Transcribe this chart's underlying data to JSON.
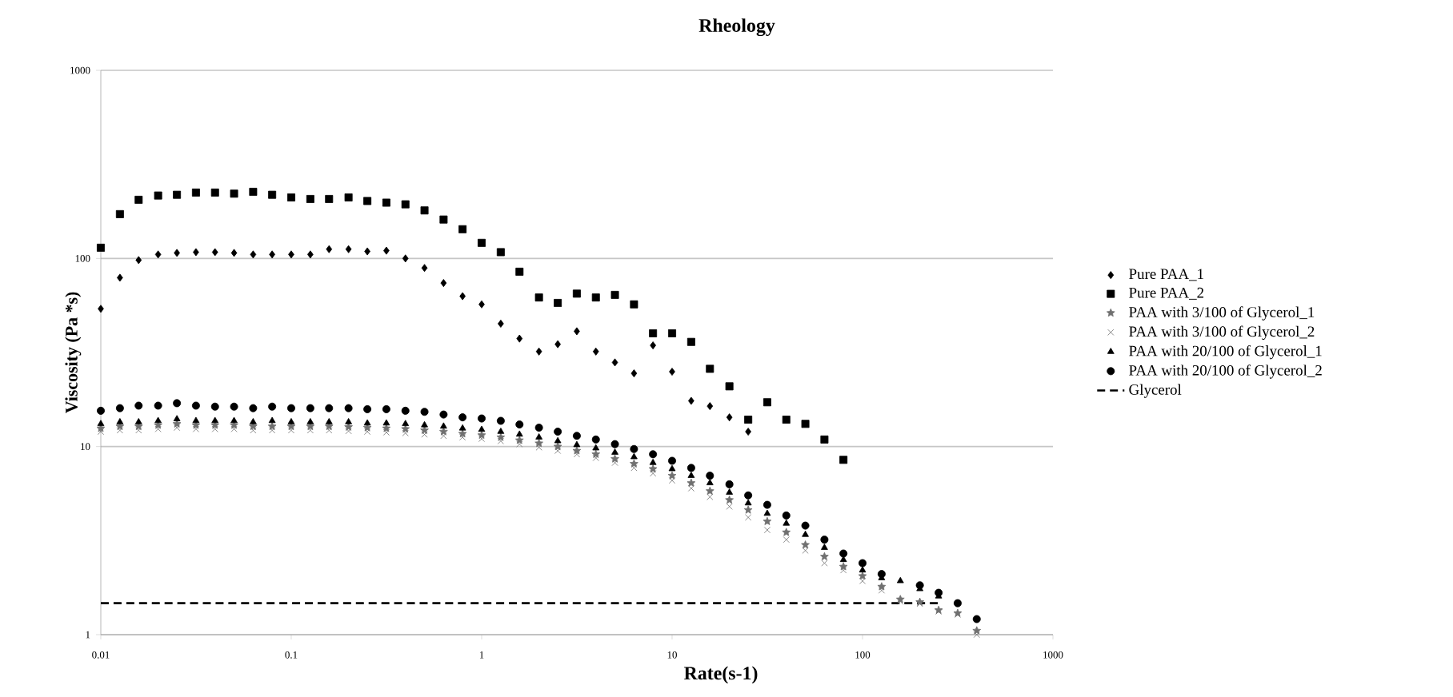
{
  "chart_data": {
    "type": "scatter",
    "title": "Rheology",
    "xlabel": "Rate(s-1)",
    "ylabel": "Viscosity (Pa *s)",
    "log": "xy",
    "grid": "y",
    "legend": "right",
    "xlim": [
      0.01,
      1000
    ],
    "ylim": [
      1,
      1000
    ],
    "xticks": [
      0.01,
      0.1,
      1,
      10,
      100,
      1000
    ],
    "yticks": [
      1,
      10,
      100,
      1000
    ],
    "series": [
      {
        "name": "Pure PAA_1",
        "color": "#000000",
        "marker": "diamond",
        "x": [
          0.01,
          0.0126,
          0.0158,
          0.02,
          0.0251,
          0.0316,
          0.0398,
          0.0501,
          0.0631,
          0.0794,
          0.1,
          0.126,
          0.158,
          0.2,
          0.251,
          0.316,
          0.398,
          0.501,
          0.631,
          0.794,
          1,
          1.26,
          1.58,
          2,
          2.51,
          3.16,
          3.98,
          5.01,
          6.31,
          7.94,
          10,
          12.6,
          15.8,
          20,
          25.1
        ],
        "values": [
          54,
          79,
          98,
          105,
          107,
          108,
          108,
          107,
          105,
          105,
          105,
          105,
          112,
          112,
          109,
          110,
          100,
          89,
          74,
          63,
          57,
          45,
          37.5,
          32,
          35,
          41,
          32,
          28,
          24.5,
          34.5,
          25,
          17.5,
          16.4,
          14.3,
          12
        ]
      },
      {
        "name": "Pure PAA_2",
        "color": "#000000",
        "marker": "square",
        "x": [
          0.01,
          0.0126,
          0.0158,
          0.02,
          0.0251,
          0.0316,
          0.0398,
          0.0501,
          0.0631,
          0.0794,
          0.1,
          0.126,
          0.158,
          0.2,
          0.251,
          0.316,
          0.398,
          0.501,
          0.631,
          0.794,
          1,
          1.26,
          1.58,
          2,
          2.51,
          3.16,
          3.98,
          5.01,
          6.31,
          7.94,
          10,
          12.6,
          15.8,
          20,
          25.1,
          31.6,
          39.8,
          50.1,
          63.1,
          79.4
        ],
        "values": [
          114,
          172,
          205,
          216,
          218,
          224,
          224,
          221,
          226,
          218,
          211,
          207,
          207,
          211,
          202,
          198,
          194,
          180,
          161,
          143,
          121,
          108,
          85,
          62,
          58,
          65,
          62,
          64,
          57,
          40,
          40,
          36,
          25.9,
          20.9,
          13.9,
          17.2,
          13.9,
          13.2,
          10.9,
          8.5
        ]
      },
      {
        "name": "PAA with 3/100 of Glycerol_1",
        "color": "#707070",
        "marker": "star",
        "x": [
          0.01,
          0.0126,
          0.0158,
          0.02,
          0.0251,
          0.0316,
          0.0398,
          0.0501,
          0.0631,
          0.0794,
          0.1,
          0.126,
          0.158,
          0.2,
          0.251,
          0.316,
          0.398,
          0.501,
          0.631,
          0.794,
          1,
          1.26,
          1.58,
          2,
          2.51,
          3.16,
          3.98,
          5.01,
          6.31,
          7.94,
          10,
          12.6,
          15.8,
          20,
          25.1,
          31.6,
          39.8,
          50.1,
          63.1,
          79.4,
          100,
          126,
          158,
          200,
          251,
          316,
          398
        ],
        "values": [
          12.5,
          12.8,
          12.8,
          13,
          13.2,
          13,
          13,
          13,
          12.8,
          12.8,
          12.8,
          12.8,
          12.8,
          12.7,
          12.6,
          12.5,
          12.4,
          12.2,
          12,
          11.7,
          11.5,
          11.2,
          10.8,
          10.4,
          10,
          9.5,
          9.1,
          8.6,
          8.1,
          7.6,
          7,
          6.4,
          5.8,
          5.2,
          4.6,
          4,
          3.5,
          3,
          2.6,
          2.3,
          2.05,
          1.8,
          1.54,
          1.49,
          1.35,
          1.3,
          1.05
        ]
      },
      {
        "name": "PAA with 3/100 of Glycerol_2",
        "color": "#707070",
        "marker": "cross",
        "x": [
          0.01,
          0.0126,
          0.0158,
          0.02,
          0.0251,
          0.0316,
          0.0398,
          0.0501,
          0.0631,
          0.0794,
          0.1,
          0.126,
          0.158,
          0.2,
          0.251,
          0.316,
          0.398,
          0.501,
          0.631,
          0.794,
          1,
          1.26,
          1.58,
          2,
          2.51,
          3.16,
          3.98,
          5.01,
          6.31,
          7.94,
          10,
          12.6,
          15.8,
          20,
          25.1,
          31.6,
          39.8,
          50.1,
          63.1,
          79.4,
          100,
          126,
          158,
          200,
          251,
          316,
          398
        ],
        "values": [
          12,
          12.2,
          12.2,
          12.4,
          12.6,
          12.4,
          12.4,
          12.4,
          12.2,
          12.2,
          12.2,
          12.2,
          12.2,
          12.1,
          12,
          11.9,
          11.8,
          11.6,
          11.4,
          11.2,
          11,
          10.7,
          10.3,
          9.9,
          9.5,
          9.1,
          8.7,
          8.2,
          7.7,
          7.2,
          6.6,
          6,
          5.4,
          4.8,
          4.2,
          3.6,
          3.2,
          2.8,
          2.4,
          2.2,
          1.93,
          1.72,
          1.5,
          1.46,
          1.33,
          1.28,
          1.0
        ]
      },
      {
        "name": "PAA with 20/100 of Glycerol_1",
        "color": "#000000",
        "marker": "triangle",
        "x": [
          0.01,
          0.0126,
          0.0158,
          0.02,
          0.0251,
          0.0316,
          0.0398,
          0.0501,
          0.0631,
          0.0794,
          0.1,
          0.126,
          0.158,
          0.2,
          0.251,
          0.316,
          0.398,
          0.501,
          0.631,
          0.794,
          1,
          1.26,
          1.58,
          2,
          2.51,
          3.16,
          3.98,
          5.01,
          6.31,
          7.94,
          10,
          12.6,
          15.8,
          20,
          25.1,
          31.6,
          39.8,
          50.1,
          63.1,
          79.4,
          100,
          126,
          158,
          200,
          251
        ],
        "values": [
          13.2,
          13.5,
          13.5,
          13.7,
          14,
          13.7,
          13.7,
          13.7,
          13.5,
          13.7,
          13.5,
          13.5,
          13.5,
          13.5,
          13.3,
          13.3,
          13.2,
          13,
          12.8,
          12.5,
          12.3,
          12,
          11.6,
          11.2,
          10.7,
          10.2,
          9.8,
          9.3,
          8.8,
          8.2,
          7.6,
          7,
          6.4,
          5.7,
          5,
          4.4,
          3.9,
          3.4,
          2.9,
          2.5,
          2.2,
          2,
          1.93,
          1.75,
          1.6
        ]
      },
      {
        "name": "PAA with 20/100 of Glycerol_2",
        "color": "#000000",
        "marker": "circle",
        "x": [
          0.01,
          0.0126,
          0.0158,
          0.02,
          0.0251,
          0.0316,
          0.0398,
          0.0501,
          0.0631,
          0.0794,
          0.1,
          0.126,
          0.158,
          0.2,
          0.251,
          0.316,
          0.398,
          0.501,
          0.631,
          0.794,
          1,
          1.26,
          1.58,
          2,
          2.51,
          3.16,
          3.98,
          5.01,
          6.31,
          7.94,
          10,
          12.6,
          15.8,
          20,
          25.1,
          31.6,
          39.8,
          50.1,
          63.1,
          79.4,
          100,
          126,
          158,
          200,
          251,
          316,
          398
        ],
        "values": [
          15.5,
          16,
          16.5,
          16.5,
          17,
          16.5,
          16.3,
          16.3,
          16,
          16.3,
          16,
          16,
          16,
          16,
          15.8,
          15.8,
          15.5,
          15.3,
          14.8,
          14.3,
          14.1,
          13.7,
          13.1,
          12.6,
          12,
          11.4,
          10.9,
          10.3,
          9.7,
          9.1,
          8.4,
          7.7,
          7,
          6.3,
          5.5,
          4.9,
          4.3,
          3.8,
          3.2,
          2.7,
          2.4,
          2.1,
          null,
          1.83,
          1.67,
          1.47,
          1.21
        ]
      },
      {
        "name": "Glycerol",
        "color": "#000000",
        "type": "line",
        "line_style": "dashed",
        "marker": "none",
        "x": [
          0.01,
          251
        ],
        "values": [
          1.47,
          1.47
        ]
      }
    ]
  }
}
